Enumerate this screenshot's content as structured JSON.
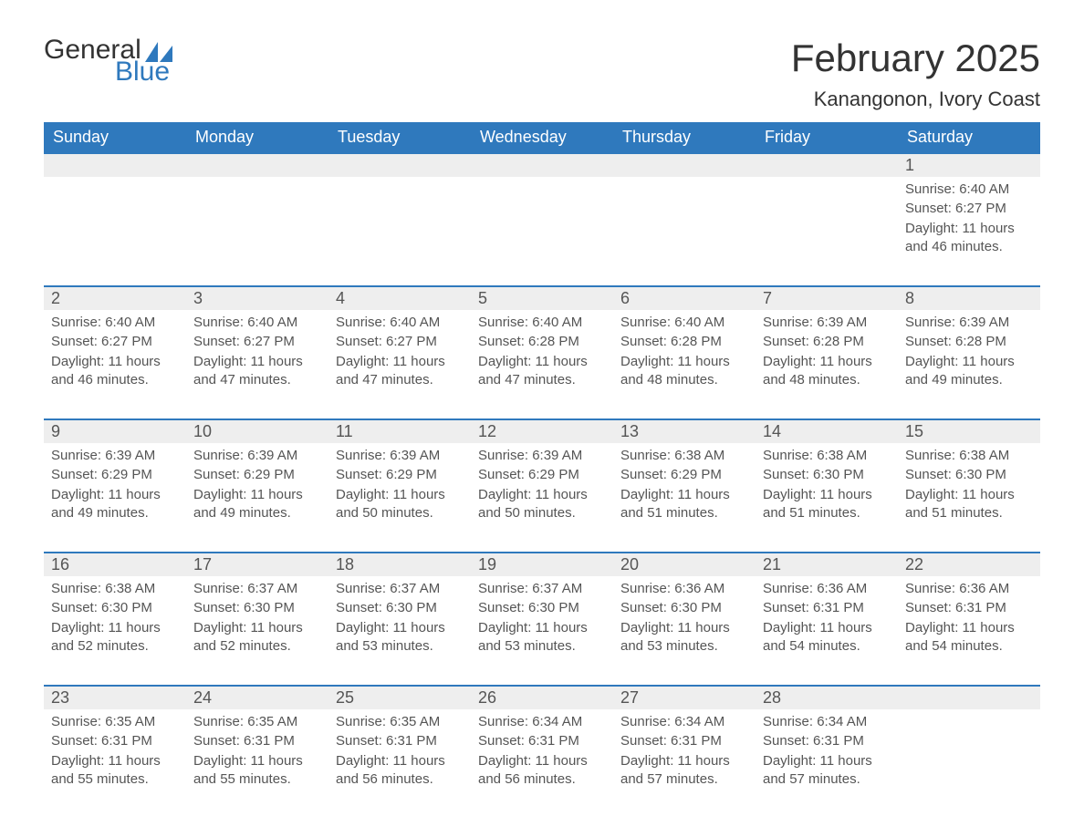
{
  "logo": {
    "word1": "General",
    "word2": "Blue"
  },
  "title": "February 2025",
  "location": "Kanangonon, Ivory Coast",
  "colors": {
    "brand_blue": "#2f79bd",
    "header_bg": "#2f79bd",
    "header_text": "#ffffff",
    "date_row_bg": "#eeeeee",
    "border_blue": "#2f79bd",
    "text_dark": "#333333",
    "text_med": "#555555",
    "background": "#ffffff"
  },
  "typography": {
    "title_fontsize": 42,
    "location_fontsize": 22,
    "header_fontsize": 18,
    "date_fontsize": 18,
    "info_fontsize": 15,
    "font_family": "Arial"
  },
  "layout": {
    "type": "table",
    "columns": 7,
    "rows": 5
  },
  "day_headers": [
    "Sunday",
    "Monday",
    "Tuesday",
    "Wednesday",
    "Thursday",
    "Friday",
    "Saturday"
  ],
  "labels": {
    "sunrise": "Sunrise:",
    "sunset": "Sunset:",
    "daylight": "Daylight:"
  },
  "weeks": [
    [
      null,
      null,
      null,
      null,
      null,
      null,
      {
        "date": "1",
        "sunrise": "6:40 AM",
        "sunset": "6:27 PM",
        "daylight": "11 hours and 46 minutes."
      }
    ],
    [
      {
        "date": "2",
        "sunrise": "6:40 AM",
        "sunset": "6:27 PM",
        "daylight": "11 hours and 46 minutes."
      },
      {
        "date": "3",
        "sunrise": "6:40 AM",
        "sunset": "6:27 PM",
        "daylight": "11 hours and 47 minutes."
      },
      {
        "date": "4",
        "sunrise": "6:40 AM",
        "sunset": "6:27 PM",
        "daylight": "11 hours and 47 minutes."
      },
      {
        "date": "5",
        "sunrise": "6:40 AM",
        "sunset": "6:28 PM",
        "daylight": "11 hours and 47 minutes."
      },
      {
        "date": "6",
        "sunrise": "6:40 AM",
        "sunset": "6:28 PM",
        "daylight": "11 hours and 48 minutes."
      },
      {
        "date": "7",
        "sunrise": "6:39 AM",
        "sunset": "6:28 PM",
        "daylight": "11 hours and 48 minutes."
      },
      {
        "date": "8",
        "sunrise": "6:39 AM",
        "sunset": "6:28 PM",
        "daylight": "11 hours and 49 minutes."
      }
    ],
    [
      {
        "date": "9",
        "sunrise": "6:39 AM",
        "sunset": "6:29 PM",
        "daylight": "11 hours and 49 minutes."
      },
      {
        "date": "10",
        "sunrise": "6:39 AM",
        "sunset": "6:29 PM",
        "daylight": "11 hours and 49 minutes."
      },
      {
        "date": "11",
        "sunrise": "6:39 AM",
        "sunset": "6:29 PM",
        "daylight": "11 hours and 50 minutes."
      },
      {
        "date": "12",
        "sunrise": "6:39 AM",
        "sunset": "6:29 PM",
        "daylight": "11 hours and 50 minutes."
      },
      {
        "date": "13",
        "sunrise": "6:38 AM",
        "sunset": "6:29 PM",
        "daylight": "11 hours and 51 minutes."
      },
      {
        "date": "14",
        "sunrise": "6:38 AM",
        "sunset": "6:30 PM",
        "daylight": "11 hours and 51 minutes."
      },
      {
        "date": "15",
        "sunrise": "6:38 AM",
        "sunset": "6:30 PM",
        "daylight": "11 hours and 51 minutes."
      }
    ],
    [
      {
        "date": "16",
        "sunrise": "6:38 AM",
        "sunset": "6:30 PM",
        "daylight": "11 hours and 52 minutes."
      },
      {
        "date": "17",
        "sunrise": "6:37 AM",
        "sunset": "6:30 PM",
        "daylight": "11 hours and 52 minutes."
      },
      {
        "date": "18",
        "sunrise": "6:37 AM",
        "sunset": "6:30 PM",
        "daylight": "11 hours and 53 minutes."
      },
      {
        "date": "19",
        "sunrise": "6:37 AM",
        "sunset": "6:30 PM",
        "daylight": "11 hours and 53 minutes."
      },
      {
        "date": "20",
        "sunrise": "6:36 AM",
        "sunset": "6:30 PM",
        "daylight": "11 hours and 53 minutes."
      },
      {
        "date": "21",
        "sunrise": "6:36 AM",
        "sunset": "6:31 PM",
        "daylight": "11 hours and 54 minutes."
      },
      {
        "date": "22",
        "sunrise": "6:36 AM",
        "sunset": "6:31 PM",
        "daylight": "11 hours and 54 minutes."
      }
    ],
    [
      {
        "date": "23",
        "sunrise": "6:35 AM",
        "sunset": "6:31 PM",
        "daylight": "11 hours and 55 minutes."
      },
      {
        "date": "24",
        "sunrise": "6:35 AM",
        "sunset": "6:31 PM",
        "daylight": "11 hours and 55 minutes."
      },
      {
        "date": "25",
        "sunrise": "6:35 AM",
        "sunset": "6:31 PM",
        "daylight": "11 hours and 56 minutes."
      },
      {
        "date": "26",
        "sunrise": "6:34 AM",
        "sunset": "6:31 PM",
        "daylight": "11 hours and 56 minutes."
      },
      {
        "date": "27",
        "sunrise": "6:34 AM",
        "sunset": "6:31 PM",
        "daylight": "11 hours and 57 minutes."
      },
      {
        "date": "28",
        "sunrise": "6:34 AM",
        "sunset": "6:31 PM",
        "daylight": "11 hours and 57 minutes."
      },
      null
    ]
  ]
}
